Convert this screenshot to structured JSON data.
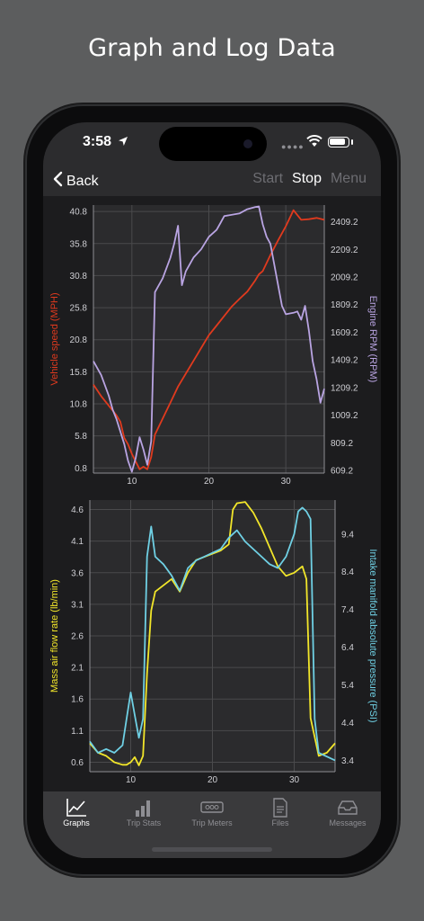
{
  "headline": "Graph and Log Data",
  "status": {
    "time": "3:58"
  },
  "nav": {
    "back": "Back",
    "start": "Start",
    "stop": "Stop",
    "menu": "Menu"
  },
  "tabs": [
    {
      "label": "Graphs",
      "icon": "chart-line-icon"
    },
    {
      "label": "Trip Stats",
      "icon": "bar-chart-icon"
    },
    {
      "label": "Trip Meters",
      "icon": "meter-icon"
    },
    {
      "label": "Files",
      "icon": "document-icon"
    },
    {
      "label": "Messages",
      "icon": "inbox-icon"
    }
  ],
  "colors": {
    "speed": "#e03a1e",
    "rpm": "#b9a4e2",
    "maf": "#f2e62a",
    "map": "#6fd0e4"
  },
  "chart_data": [
    {
      "type": "line",
      "x_ticks": [
        10,
        20,
        30
      ],
      "xlim": [
        5,
        35
      ],
      "left_axis": {
        "label": "Vehicle speed (MPH)",
        "ticks": [
          "40.8",
          "35.8",
          "30.8",
          "25.8",
          "20.8",
          "15.8",
          "10.8",
          "5.8",
          "0.8"
        ],
        "ylim": [
          0,
          41.8
        ]
      },
      "right_axis": {
        "label": "Engine RPM (RPM)",
        "ticks": [
          "2409.2",
          "2209.2",
          "2009.2",
          "1809.2",
          "1609.2",
          "1409.2",
          "1209.2",
          "1009.2",
          "809.2",
          "609.2"
        ],
        "ylim": [
          590,
          2530
        ]
      },
      "series": [
        {
          "name": "Vehicle speed (MPH)",
          "axis": "left",
          "color": "#e03a1e",
          "x": [
            5,
            6,
            7,
            8,
            8.5,
            9,
            9.5,
            10,
            10.5,
            11,
            11.5,
            12,
            12.5,
            13,
            14,
            15,
            16,
            17,
            18,
            19,
            20,
            21,
            22,
            23,
            24,
            25,
            26,
            26.5,
            27,
            28,
            29,
            30,
            31,
            32,
            33,
            34,
            35
          ],
          "y": [
            13.8,
            12,
            10.5,
            9,
            8,
            5.5,
            4.5,
            3,
            1.8,
            0.6,
            1.0,
            0.6,
            2.5,
            6,
            8.5,
            11,
            13.5,
            15.5,
            17.5,
            19.5,
            21.5,
            23,
            24.5,
            26,
            27.2,
            28.3,
            30,
            31,
            31.5,
            34,
            36.3,
            38.5,
            41.0,
            39.5,
            39.6,
            39.8,
            39.5
          ]
        },
        {
          "name": "Engine RPM (RPM)",
          "axis": "right",
          "color": "#b9a4e2",
          "x": [
            5,
            6,
            7,
            7.5,
            8,
            9,
            9.5,
            10,
            10.5,
            11,
            11.5,
            12,
            12.5,
            13,
            14,
            15,
            15.5,
            16,
            16.5,
            17,
            18,
            19,
            20,
            21,
            21.5,
            22,
            24,
            25,
            26,
            26.5,
            27,
            27.5,
            28,
            29,
            29.5,
            30,
            31,
            31.5,
            32,
            32.5,
            33,
            33.5,
            34,
            34.5,
            35
          ],
          "y": [
            1400,
            1300,
            1150,
            1050,
            980,
            800,
            680,
            600,
            700,
            850,
            760,
            650,
            820,
            1900,
            2000,
            2150,
            2250,
            2380,
            1950,
            2050,
            2150,
            2210,
            2300,
            2350,
            2400,
            2450,
            2470,
            2500,
            2515,
            2520,
            2390,
            2300,
            2250,
            1950,
            1800,
            1740,
            1750,
            1760,
            1700,
            1800,
            1620,
            1400,
            1270,
            1100,
            1200
          ]
        }
      ]
    },
    {
      "type": "line",
      "x_ticks": [
        10,
        20,
        30
      ],
      "xlim": [
        5,
        35
      ],
      "left_axis": {
        "label": "Mass air flow rate (lb/min)",
        "ticks": [
          "4.6",
          "4.1",
          "3.6",
          "3.1",
          "2.6",
          "2.1",
          "1.6",
          "1.1",
          "0.6"
        ],
        "ylim": [
          0.45,
          4.75
        ]
      },
      "right_axis": {
        "label": "Intake manifold absolute pressure (PSI)",
        "ticks": [
          "9.4",
          "8.4",
          "7.4",
          "6.4",
          "5.4",
          "4.4",
          "3.4"
        ],
        "ylim": [
          3.1,
          10.3
        ]
      },
      "series": [
        {
          "name": "Mass air flow rate (lb/min)",
          "axis": "left",
          "color": "#f2e62a",
          "x": [
            5,
            6,
            7,
            8,
            9,
            9.5,
            10,
            10.5,
            11,
            11.5,
            12,
            12.5,
            13,
            14,
            15,
            16,
            17,
            18,
            19,
            20,
            21,
            22,
            22.5,
            23,
            24,
            25,
            26,
            27,
            28,
            29,
            30,
            31,
            31.5,
            32,
            32.5,
            33,
            34,
            35
          ],
          "y": [
            0.9,
            0.75,
            0.7,
            0.6,
            0.56,
            0.56,
            0.6,
            0.68,
            0.55,
            0.7,
            2.0,
            3.0,
            3.3,
            3.4,
            3.5,
            3.3,
            3.6,
            3.8,
            3.85,
            3.9,
            3.95,
            4.05,
            4.6,
            4.7,
            4.72,
            4.55,
            4.3,
            4.0,
            3.7,
            3.55,
            3.6,
            3.7,
            3.5,
            1.3,
            1.0,
            0.7,
            0.75,
            0.9
          ]
        },
        {
          "name": "Intake manifold absolute pressure (PSI)",
          "axis": "right",
          "color": "#6fd0e4",
          "x": [
            5,
            6,
            7,
            8,
            9,
            9.5,
            10,
            10.5,
            11,
            11.5,
            12,
            12.5,
            13,
            14,
            15,
            16,
            17,
            18,
            19,
            20,
            21,
            22,
            23,
            24,
            25,
            26,
            27,
            28,
            29,
            30,
            30.5,
            31,
            31.5,
            32,
            32.5,
            33,
            34,
            35
          ],
          "y": [
            3.9,
            3.6,
            3.7,
            3.6,
            3.8,
            4.5,
            5.2,
            4.6,
            4.0,
            4.5,
            8.8,
            9.6,
            8.8,
            8.6,
            8.3,
            7.9,
            8.5,
            8.7,
            8.8,
            8.9,
            9.0,
            9.3,
            9.5,
            9.2,
            9.0,
            8.8,
            8.6,
            8.5,
            8.8,
            9.4,
            10.0,
            10.1,
            10.0,
            9.8,
            4.5,
            3.6,
            3.5,
            3.4
          ]
        }
      ]
    }
  ]
}
